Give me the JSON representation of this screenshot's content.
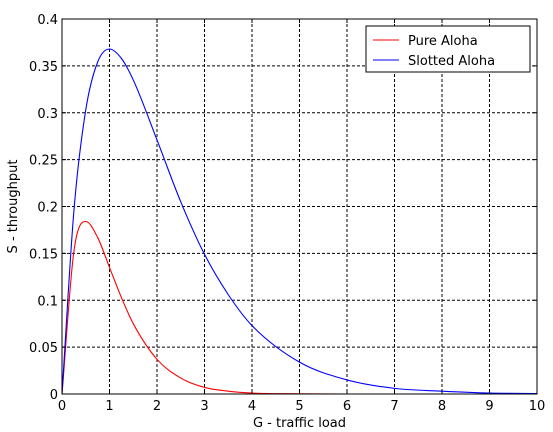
{
  "chart_data": {
    "type": "line",
    "title": "",
    "xlabel": "G - traffic load",
    "ylabel": "S - throughput",
    "xlim": [
      0,
      10
    ],
    "ylim": [
      0,
      0.4
    ],
    "x_ticks": [
      0,
      1,
      2,
      3,
      4,
      5,
      6,
      7,
      8,
      9,
      10
    ],
    "x_tick_labels": [
      "0",
      "1",
      "2",
      "3",
      "4",
      "5",
      "6",
      "7",
      "8",
      "9",
      "10"
    ],
    "y_ticks": [
      0,
      0.05,
      0.1,
      0.15,
      0.2,
      0.25,
      0.3,
      0.35,
      0.4
    ],
    "y_tick_labels": [
      "0",
      "0.05",
      "0.1",
      "0.15",
      "0.2",
      "0.25",
      "0.3",
      "0.35",
      "0.4"
    ],
    "grid": true,
    "legend_position": "top-right",
    "x": [
      0,
      0.25,
      0.5,
      0.75,
      1,
      1.25,
      1.5,
      2,
      2.5,
      3,
      3.5,
      4,
      5,
      6,
      7,
      8,
      9,
      10
    ],
    "series": [
      {
        "name": "Pure Aloha",
        "color": "#ff0000",
        "values": [
          0,
          0.152,
          0.184,
          0.167,
          0.135,
          0.103,
          0.075,
          0.037,
          0.017,
          0.007,
          0.003,
          0.001,
          0.0002,
          0,
          0,
          0,
          0,
          0
        ]
      },
      {
        "name": "Slotted Aloha",
        "color": "#0000ff",
        "values": [
          0,
          0.195,
          0.303,
          0.354,
          0.368,
          0.358,
          0.335,
          0.271,
          0.205,
          0.149,
          0.106,
          0.073,
          0.034,
          0.015,
          0.006,
          0.003,
          0.001,
          0.0005
        ]
      }
    ]
  }
}
